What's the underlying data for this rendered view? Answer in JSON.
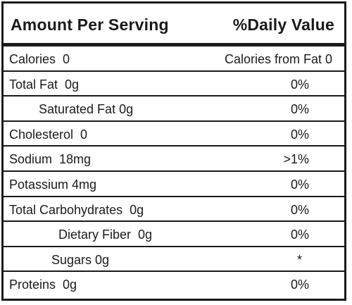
{
  "header": {
    "left": "Amount Per Serving",
    "right": "%Daily Value"
  },
  "rows": [
    {
      "name": "Calories  0",
      "value": "Calories from Fat 0"
    },
    {
      "name": "Total Fat  0g",
      "value": "0%"
    },
    {
      "name": "Saturated Fat 0g",
      "value": "0%"
    },
    {
      "name": "Cholesterol  0",
      "value": "0%"
    },
    {
      "name": "Sodium  18mg",
      "value": ">1%"
    },
    {
      "name": "Potassium 4mg",
      "value": "0%"
    },
    {
      "name": "Total Carbohydrates  0g",
      "value": "0%"
    },
    {
      "name": "Dietary Fiber  0g",
      "value": "0%"
    },
    {
      "name": "Sugars 0g",
      "value": "*"
    },
    {
      "name": "Proteins  0g",
      "value": "0%"
    }
  ]
}
